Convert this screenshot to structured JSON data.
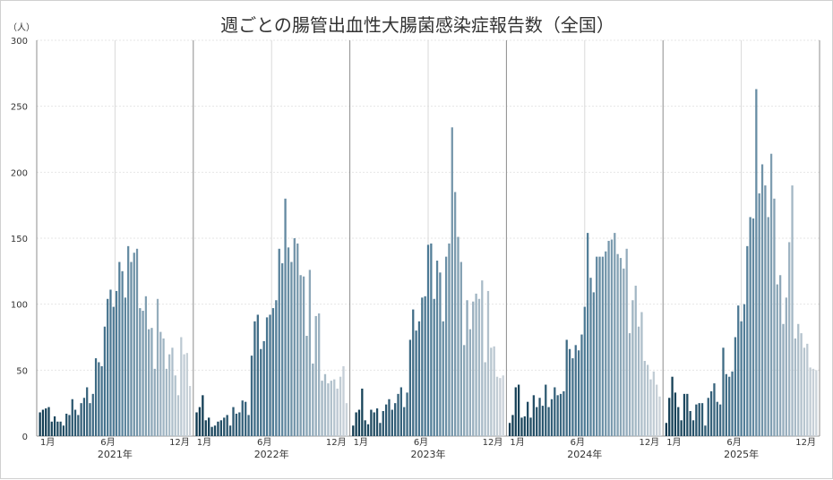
{
  "chart_data": {
    "type": "bar",
    "title": "週ごとの腸管出血性大腸菌感染症報告数（全国）",
    "ylabel": "（人）",
    "ylim": [
      0,
      300
    ],
    "yticks": [
      "0",
      "50",
      "100",
      "150",
      "200",
      "250",
      "300"
    ],
    "grid": true,
    "panels": [
      {
        "year": "2021年",
        "month_labels": {
          "start": "1月",
          "mid": "6月",
          "end": "12月"
        },
        "values": [
          18,
          20,
          21,
          22,
          11,
          15,
          11,
          11,
          8,
          17,
          16,
          28,
          20,
          16,
          25,
          29,
          37,
          25,
          32,
          59,
          56,
          53,
          83,
          104,
          111,
          98,
          110,
          132,
          125,
          105,
          144,
          132,
          139,
          142,
          97,
          95,
          106,
          81,
          82,
          51,
          104,
          79,
          74,
          51,
          62,
          67,
          46,
          31,
          75,
          62,
          63,
          38
        ]
      },
      {
        "year": "2022年",
        "month_labels": {
          "start": "1月",
          "mid": "6月",
          "end": "12月"
        },
        "values": [
          18,
          22,
          31,
          12,
          14,
          7,
          8,
          11,
          12,
          14,
          16,
          8,
          22,
          17,
          18,
          27,
          26,
          16,
          61,
          87,
          92,
          66,
          72,
          90,
          92,
          97,
          103,
          142,
          131,
          180,
          143,
          132,
          150,
          146,
          122,
          121,
          76,
          126,
          55,
          91,
          93,
          42,
          47,
          40,
          42,
          43,
          36,
          45,
          53,
          25
        ]
      },
      {
        "year": "2023年",
        "month_labels": {
          "start": "1月",
          "mid": "6月",
          "end": "12月"
        },
        "values": [
          8,
          18,
          20,
          36,
          12,
          9,
          20,
          18,
          21,
          10,
          19,
          24,
          28,
          20,
          25,
          32,
          37,
          22,
          33,
          73,
          96,
          80,
          87,
          105,
          106,
          145,
          146,
          104,
          133,
          124,
          87,
          136,
          146,
          234,
          185,
          151,
          132,
          69,
          103,
          81,
          102,
          108,
          104,
          118,
          56,
          110,
          67,
          68,
          45,
          44,
          46
        ]
      },
      {
        "year": "2024年",
        "month_labels": {
          "start": "1月",
          "mid": "6月",
          "end": "12月"
        },
        "values": [
          10,
          16,
          37,
          39,
          14,
          15,
          26,
          14,
          31,
          22,
          29,
          23,
          39,
          22,
          28,
          37,
          31,
          32,
          34,
          73,
          66,
          59,
          69,
          65,
          77,
          98,
          154,
          120,
          109,
          136,
          136,
          136,
          140,
          148,
          149,
          154,
          138,
          135,
          127,
          142,
          78,
          103,
          114,
          83,
          94,
          57,
          54,
          43,
          49,
          39,
          30
        ]
      },
      {
        "year": "2025年",
        "month_labels": {
          "start": "1月",
          "mid": "6月",
          "end": "12月"
        },
        "values": [
          10,
          29,
          45,
          33,
          22,
          12,
          32,
          32,
          19,
          12,
          24,
          25,
          25,
          8,
          29,
          34,
          40,
          26,
          24,
          67,
          47,
          45,
          49,
          75,
          99,
          87,
          100,
          144,
          166,
          165,
          263,
          184,
          206,
          190,
          166,
          214,
          180,
          115,
          122,
          85,
          105,
          147,
          190,
          74,
          85,
          78,
          67,
          70,
          52,
          51,
          50
        ]
      }
    ]
  },
  "colors": {
    "start": "#0f3a50",
    "mid": "#4d7a95",
    "end": "#cbd3da",
    "grid": "#e6e6e6",
    "divider": "#8c8c8c",
    "mid_line": "#d9d9d9"
  }
}
